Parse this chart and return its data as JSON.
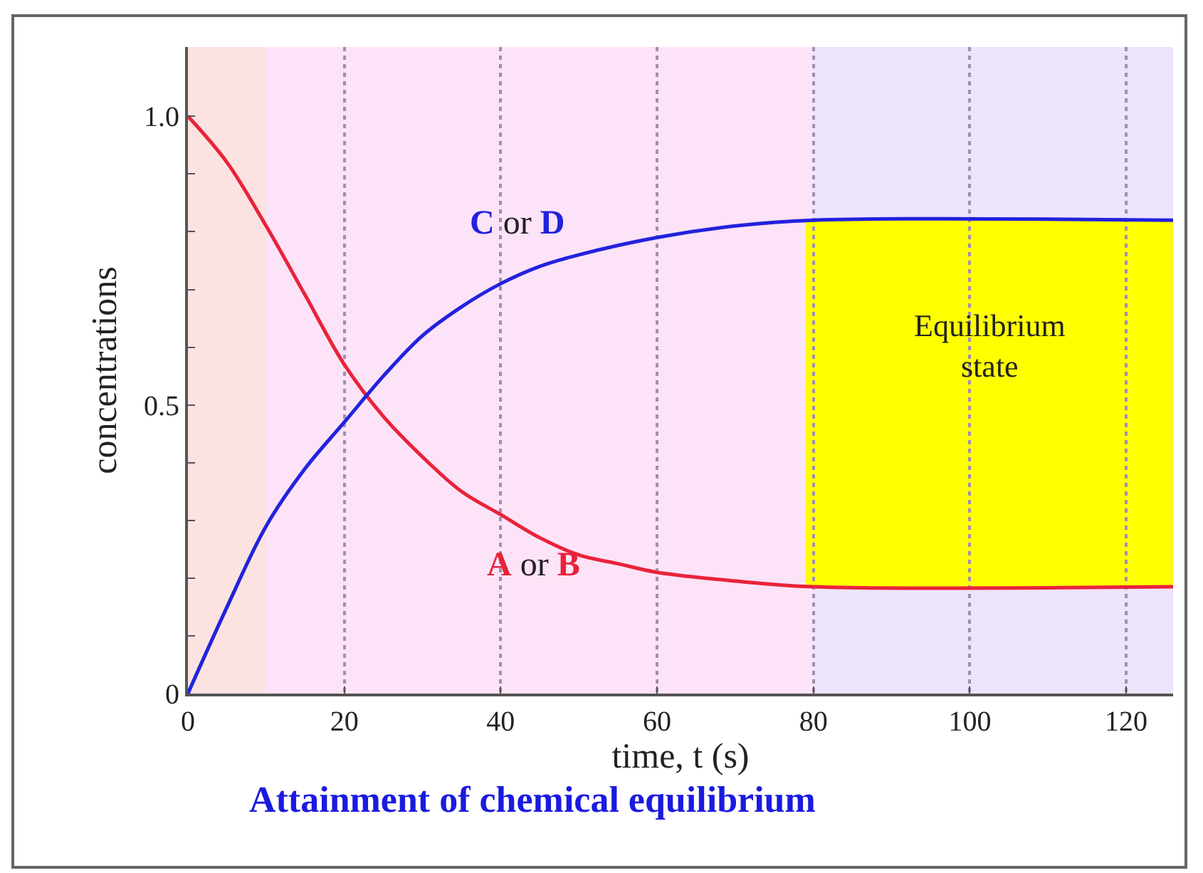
{
  "chart_data": {
    "type": "line",
    "title": "Attainment of chemical equilibrium",
    "xlabel": "time, t (s)",
    "ylabel": "concentrations",
    "series": [
      {
        "name": "A or B",
        "color": "#e8233a",
        "x": [
          0,
          5,
          10,
          15,
          20,
          25,
          30,
          35,
          40,
          45,
          50,
          55,
          60,
          70,
          80,
          126
        ],
        "values": [
          1.0,
          0.92,
          0.81,
          0.69,
          0.57,
          0.48,
          0.41,
          0.35,
          0.31,
          0.27,
          0.24,
          0.225,
          0.21,
          0.195,
          0.185,
          0.185
        ]
      },
      {
        "name": "C or D",
        "color": "#2222dd",
        "x": [
          0,
          5,
          10,
          15,
          20,
          25,
          30,
          35,
          40,
          45,
          50,
          60,
          70,
          80,
          126
        ],
        "values": [
          0,
          0.15,
          0.29,
          0.39,
          0.47,
          0.55,
          0.62,
          0.67,
          0.71,
          0.74,
          0.76,
          0.79,
          0.81,
          0.82,
          0.82
        ]
      }
    ],
    "bands": [
      {
        "axis": "x",
        "from": 0,
        "to": 10,
        "color": "#fde2e2"
      },
      {
        "axis": "x",
        "from": 10,
        "to": 80,
        "color": "#fde3f8"
      },
      {
        "axis": "x",
        "from": 80,
        "to": 126,
        "color": "#ede3fb"
      },
      {
        "axis": "x",
        "from": 79,
        "to": 126,
        "color": "#ffff00",
        "label": "Equilibrium state"
      }
    ],
    "xlim": [
      0,
      126
    ],
    "xticks": [
      0,
      20,
      40,
      60,
      80,
      100,
      120
    ],
    "ylim": [
      0,
      1.12
    ],
    "yticks": [
      0,
      {
        "value": 0.1,
        "label": null
      },
      {
        "value": 0.2,
        "label": null
      },
      {
        "value": 0.3,
        "label": null
      },
      {
        "value": 0.4,
        "label": null
      },
      0.5,
      {
        "value": 0.6,
        "label": null
      },
      {
        "value": 0.7,
        "label": null
      },
      {
        "value": 0.8,
        "label": null
      },
      {
        "value": 0.9,
        "label": null
      },
      {
        "value": 1.0,
        "label": "1.0"
      }
    ],
    "grid": "x",
    "line_style": "solid",
    "marker": "none"
  }
}
